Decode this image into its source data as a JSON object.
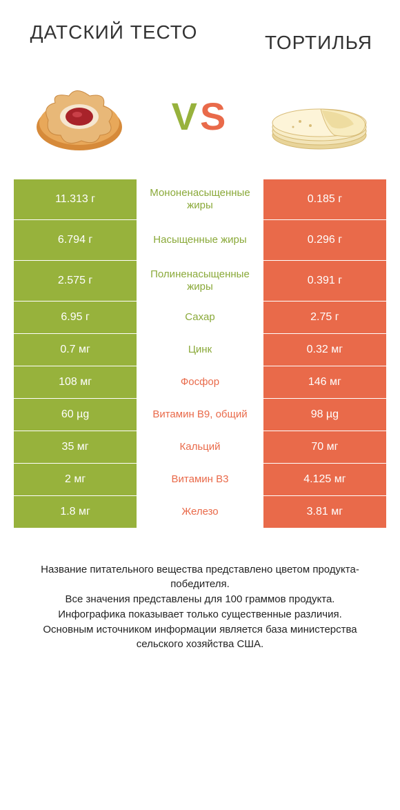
{
  "colors": {
    "left_bg": "#97b23c",
    "right_bg": "#e96a4a",
    "left_text": "#8aa939",
    "right_text": "#e96a4a",
    "page_bg": "#ffffff",
    "cell_text": "#ffffff",
    "footer_text": "#222222"
  },
  "typography": {
    "title_fontsize": 28,
    "vs_fontsize": 56,
    "cell_fontsize": 16,
    "label_fontsize": 15,
    "footer_fontsize": 15
  },
  "header": {
    "left_title": "ДАТСКИЙ ТЕСТО",
    "right_title": "ТОРТИЛЬЯ",
    "vs": "VS"
  },
  "rows": [
    {
      "left": "11.313 г",
      "label": "Мононенасыщенные жиры",
      "right": "0.185 г",
      "winner": "left",
      "tall": true
    },
    {
      "left": "6.794 г",
      "label": "Насыщенные жиры",
      "right": "0.296 г",
      "winner": "left",
      "tall": true
    },
    {
      "left": "2.575 г",
      "label": "Полиненасыщенные жиры",
      "right": "0.391 г",
      "winner": "left",
      "tall": true
    },
    {
      "left": "6.95 г",
      "label": "Сахар",
      "right": "2.75 г",
      "winner": "left",
      "tall": false
    },
    {
      "left": "0.7 мг",
      "label": "Цинк",
      "right": "0.32 мг",
      "winner": "left",
      "tall": false
    },
    {
      "left": "108 мг",
      "label": "Фосфор",
      "right": "146 мг",
      "winner": "right",
      "tall": false
    },
    {
      "left": "60 µg",
      "label": "Витамин B9, общий",
      "right": "98 µg",
      "winner": "right",
      "tall": false
    },
    {
      "left": "35 мг",
      "label": "Кальций",
      "right": "70 мг",
      "winner": "right",
      "tall": false
    },
    {
      "left": "2 мг",
      "label": "Витамин B3",
      "right": "4.125 мг",
      "winner": "right",
      "tall": false
    },
    {
      "left": "1.8 мг",
      "label": "Железо",
      "right": "3.81 мг",
      "winner": "right",
      "tall": false
    }
  ],
  "footer": {
    "line1": "Название питательного вещества представлено цветом продукта-победителя.",
    "line2": "Все значения представлены для 100 граммов продукта.",
    "line3": "Инфографика показывает только существенные различия.",
    "line4": "Основным источником информации является база министерства сельского хозяйства США."
  }
}
